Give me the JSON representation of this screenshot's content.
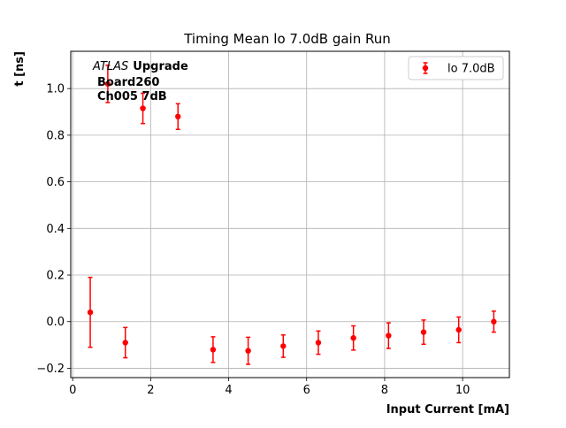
{
  "chart_data": {
    "type": "scatter",
    "title": "Timing Mean lo 7.0dB gain Run",
    "xlabel": "Input Current [mA]",
    "ylabel": "t [ns]",
    "xlim": [
      -0.05,
      11.2
    ],
    "ylim": [
      -0.24,
      1.16
    ],
    "xticks": [
      0,
      2,
      4,
      6,
      8,
      10
    ],
    "xtick_labels": [
      "0",
      "2",
      "4",
      "6",
      "8",
      "10"
    ],
    "yticks": [
      -0.2,
      0.0,
      0.2,
      0.4,
      0.6,
      0.8,
      1.0
    ],
    "ytick_labels": [
      "−0.2",
      "0.0",
      "0.2",
      "0.4",
      "0.6",
      "0.8",
      "1.0"
    ],
    "grid": true,
    "legend_position": "top-right",
    "annotation": {
      "line1_italic": "ATLAS",
      "line1_bold": "Upgrade",
      "line2": "Board260",
      "line3": "Ch005 7dB"
    },
    "series": [
      {
        "name": "lo 7.0dB",
        "color": "#ff0000",
        "x": [
          0.45,
          0.9,
          1.35,
          1.8,
          2.7,
          3.6,
          4.5,
          5.4,
          6.3,
          7.2,
          8.1,
          9.0,
          9.9,
          10.8
        ],
        "y": [
          0.04,
          1.02,
          -0.09,
          0.915,
          0.88,
          -0.12,
          -0.125,
          -0.105,
          -0.09,
          -0.07,
          -0.06,
          -0.045,
          -0.035,
          0.0
        ],
        "yerr": [
          0.15,
          0.08,
          0.065,
          0.065,
          0.055,
          0.055,
          0.058,
          0.048,
          0.05,
          0.052,
          0.055,
          0.052,
          0.055,
          0.045
        ]
      }
    ]
  }
}
